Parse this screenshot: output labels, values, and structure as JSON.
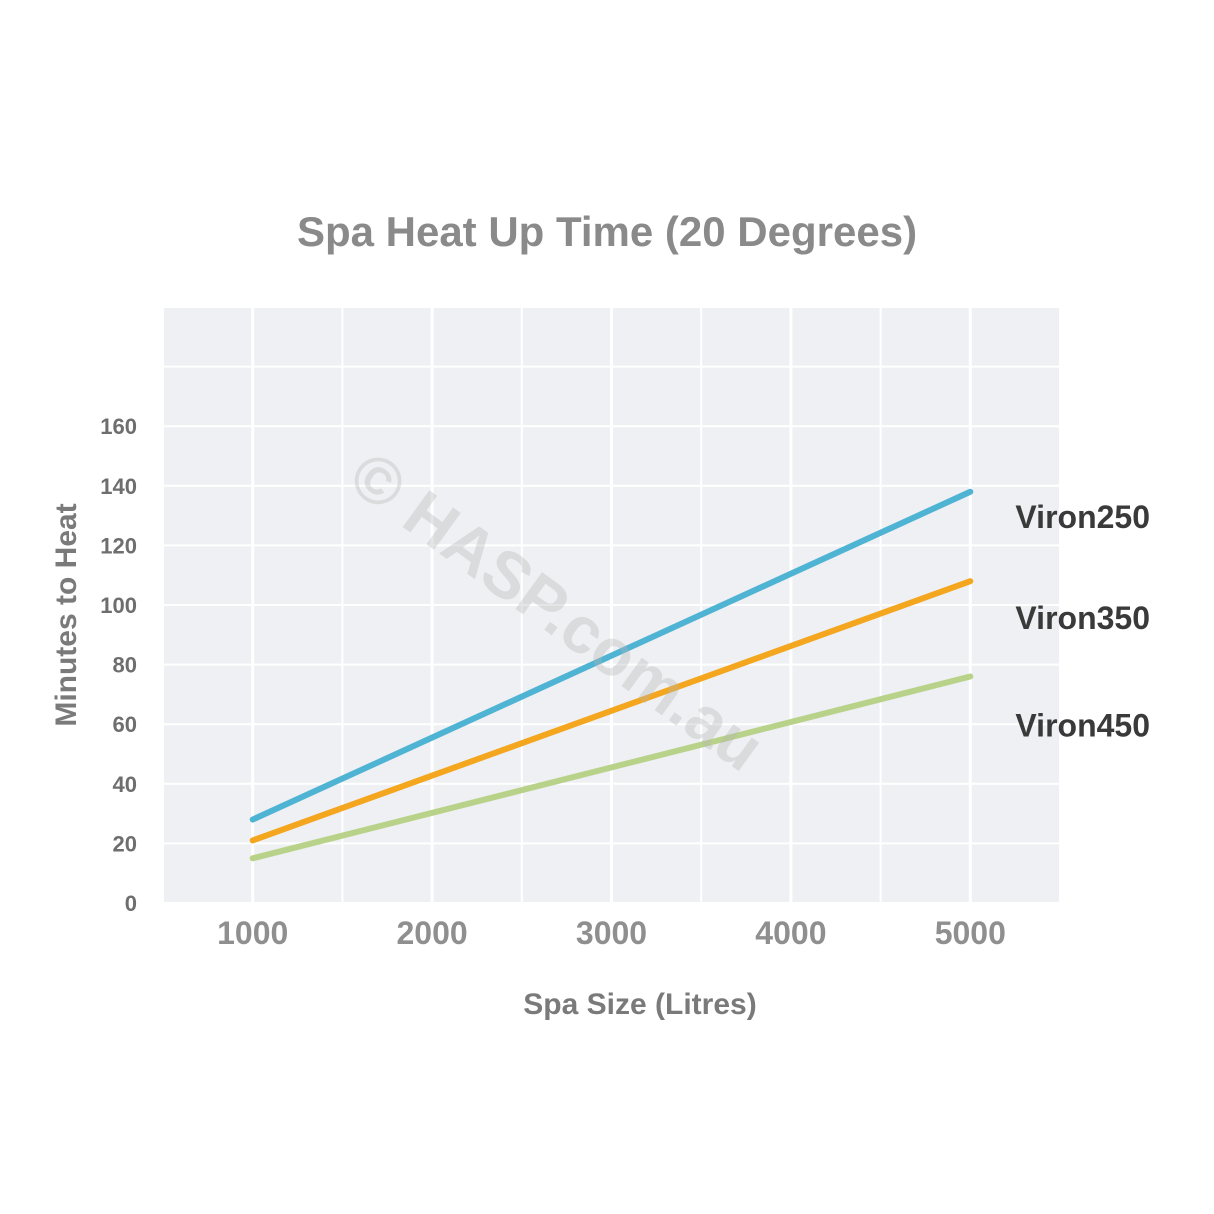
{
  "chart_data": {
    "type": "line",
    "title": "Spa Heat Up Time (20 Degrees)",
    "xlabel": "Spa Size (Litres)",
    "ylabel": "Minutes to Heat",
    "x": [
      1000,
      5000
    ],
    "xticks": [
      "1000",
      "2000",
      "3000",
      "4000",
      "5000"
    ],
    "yticks": [
      "0",
      "20",
      "40",
      "60",
      "80",
      "100",
      "120",
      "140",
      "160"
    ],
    "xlim": [
      500,
      5500
    ],
    "ylim": [
      0,
      200
    ],
    "grid": true,
    "series": [
      {
        "name": "Viron250",
        "color": "#4fb3d3",
        "values": [
          28,
          138
        ]
      },
      {
        "name": "Viron350",
        "color": "#f3a61e",
        "values": [
          21,
          108
        ]
      },
      {
        "name": "Viron450",
        "color": "#b9d28a",
        "values": [
          15,
          76
        ]
      }
    ]
  },
  "watermark": "© HASP.com.au"
}
